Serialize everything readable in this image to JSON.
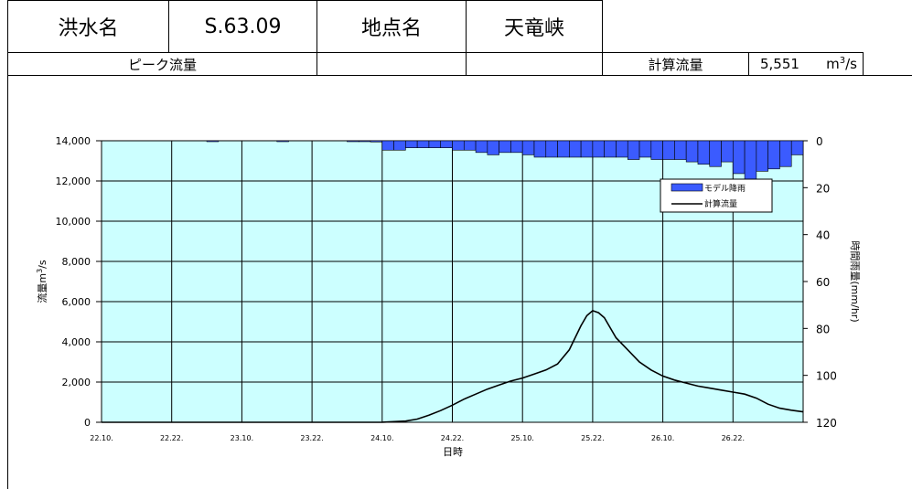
{
  "header": {
    "flood_label": "洪水名",
    "flood_value": "S.63.09",
    "site_label": "地点名",
    "site_value": "天竜峡",
    "peak_label": "ピーク流量",
    "calc_label": "計算流量",
    "calc_value": "5,551",
    "calc_unit_base": "m",
    "calc_unit_sup": "3",
    "calc_unit_tail": "/s"
  },
  "chart_data": {
    "type": "line+bar",
    "xlabel": "日時",
    "ylabel_left_base": "流量m",
    "ylabel_left_sup": "3",
    "ylabel_left_tail": "/s",
    "ylabel_right": "時間雨量(mm/hr)",
    "x_ticks": [
      "22.10.",
      "22.22.",
      "23.10.",
      "23.22.",
      "24.10.",
      "24.22.",
      "25.10.",
      "25.22.",
      "26.10.",
      "26.22."
    ],
    "x_range_hours": [
      0,
      60
    ],
    "ylim_left": [
      0,
      14000
    ],
    "ylim_right": [
      0,
      120
    ],
    "y_ticks_left": [
      "0",
      "2,000",
      "4,000",
      "6,000",
      "8,000",
      "10,000",
      "12,000",
      "14,000"
    ],
    "y_ticks_right": [
      "0",
      "20",
      "40",
      "60",
      "80",
      "100",
      "120"
    ],
    "grid": true,
    "legend_position": "right",
    "series": [
      {
        "name": "モデル降雨",
        "type": "bar",
        "color": "#3b5bff",
        "x_hours": [
          9,
          15,
          21,
          22,
          23,
          24,
          25,
          26,
          27,
          28,
          29,
          30,
          31,
          32,
          33,
          34,
          35,
          36,
          37,
          38,
          39,
          40,
          41,
          42,
          43,
          44,
          45,
          46,
          47,
          48,
          49,
          50,
          51,
          52,
          53,
          54,
          55,
          56,
          57,
          58,
          59
        ],
        "values": [
          0.3,
          0.2,
          0.2,
          0.3,
          0.5,
          4,
          4,
          3,
          3,
          3,
          3,
          4,
          4,
          5,
          6,
          5,
          5,
          6,
          7,
          7,
          7,
          7,
          7,
          7,
          7,
          7,
          8,
          7,
          8,
          8,
          8,
          9,
          10,
          11,
          9,
          14,
          24,
          13,
          12,
          11,
          6
        ]
      },
      {
        "name": "計算流量",
        "type": "line",
        "color": "#000000",
        "x_hours": [
          0,
          5,
          10,
          15,
          20,
          23,
          24,
          25,
          26,
          27,
          28,
          29,
          30,
          31,
          32,
          33,
          34,
          35,
          36,
          37,
          38,
          39,
          40,
          40.5,
          41,
          41.5,
          42,
          42.5,
          43,
          43.5,
          44,
          45,
          46,
          47,
          48,
          49,
          50,
          51,
          52,
          53,
          54,
          55,
          56,
          57,
          58,
          59,
          60
        ],
        "values": [
          0,
          0,
          0,
          0,
          0,
          0,
          5,
          30,
          60,
          160,
          350,
          580,
          850,
          1150,
          1400,
          1650,
          1850,
          2050,
          2200,
          2400,
          2600,
          2900,
          3600,
          4200,
          4800,
          5300,
          5551,
          5450,
          5200,
          4700,
          4200,
          3600,
          3000,
          2600,
          2300,
          2100,
          1950,
          1800,
          1700,
          1600,
          1500,
          1400,
          1200,
          900,
          700,
          600,
          520
        ]
      }
    ]
  }
}
